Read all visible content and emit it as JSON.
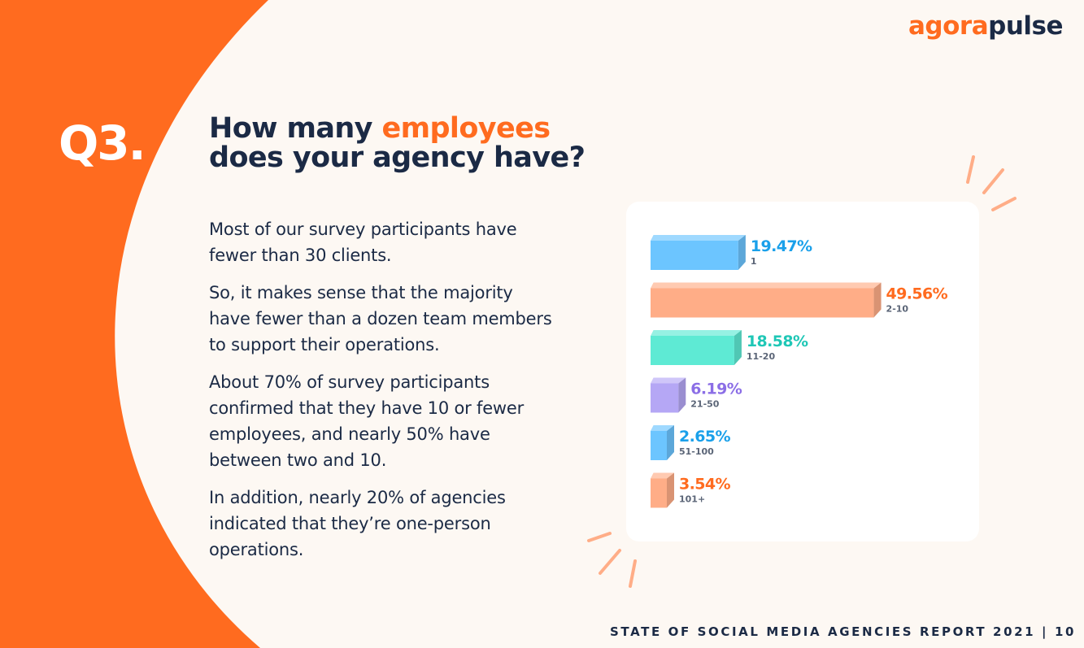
{
  "brand": {
    "part1": "agora",
    "part2": "pulse"
  },
  "question": {
    "number": "Q3.",
    "title_part1": "How many ",
    "title_highlight": "employees",
    "title_part2": "does your agency have?"
  },
  "body": {
    "paragraphs": [
      "Most of our survey participants have fewer than 30 clients.",
      "So, it makes sense that the majority have fewer than a dozen team members to support their operations.",
      "About 70% of survey participants confirmed that they have 10 or fewer employees, and nearly 50% have between two and 10.",
      "In addition, nearly 20% of agencies indicated that they’re one-person operations."
    ]
  },
  "footer": {
    "text": "STATE OF SOCIAL MEDIA AGENCIES REPORT 2021",
    "separator": "|",
    "page": "10"
  },
  "colors": {
    "orange": "#ff6b1f",
    "navy": "#1b2a45",
    "background": "#fdf8f3"
  },
  "chart_data": {
    "type": "bar",
    "orientation": "horizontal",
    "categories": [
      "1",
      "2-10",
      "11-20",
      "21-50",
      "51-100",
      "101+"
    ],
    "values": [
      19.47,
      49.56,
      18.58,
      6.19,
      2.65,
      3.54
    ],
    "value_labels": [
      "19.47%",
      "49.56%",
      "18.58%",
      "6.19%",
      "2.65%",
      "3.54%"
    ],
    "colors": [
      "#6cc5ff",
      "#ffad87",
      "#5eead4",
      "#b5a7f5",
      "#6cc5ff",
      "#ffad87"
    ],
    "label_colors": [
      "#1aa0ea",
      "#ff6b1f",
      "#1fc7b6",
      "#8b6ee6",
      "#1aa0ea",
      "#ff6b1f"
    ],
    "xlim": [
      0,
      50
    ]
  }
}
